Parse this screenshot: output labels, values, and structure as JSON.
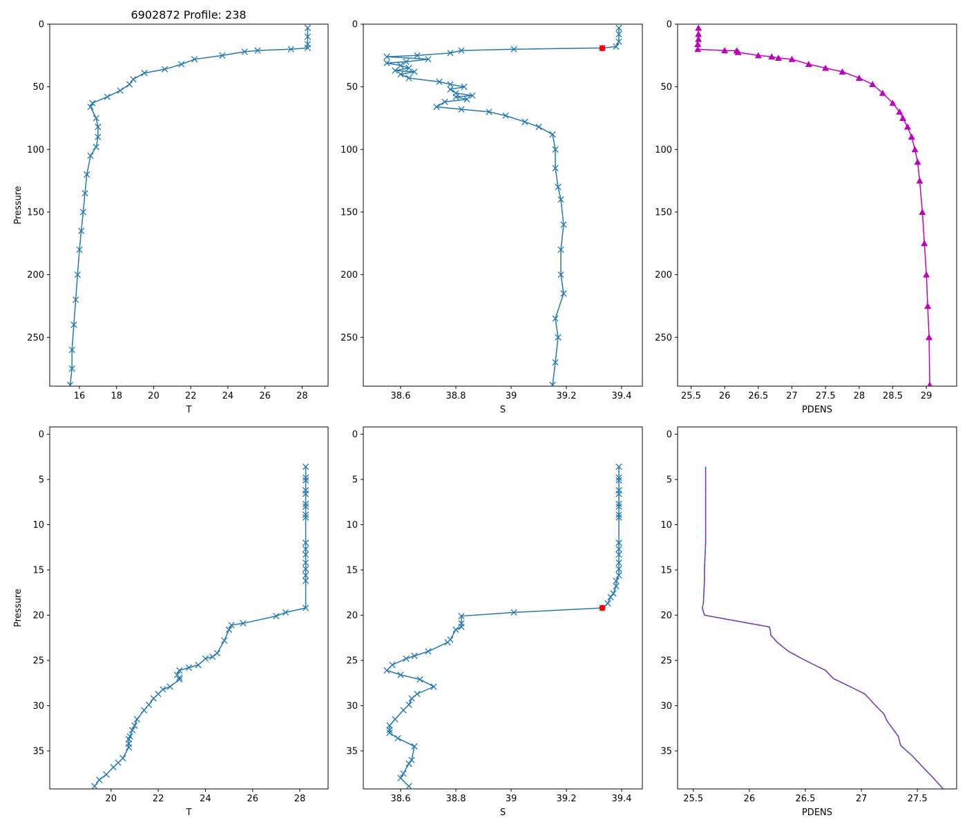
{
  "figure_title": "6902872 Profile: 238",
  "colors": {
    "series": "#1f77b4",
    "pdens": "#bf00bf",
    "pdens_dash": "#1f77b4",
    "highlight": "#ff0000"
  },
  "chart_data": [
    {
      "id": "p1",
      "type": "line",
      "xlabel": "T",
      "ylabel": "Pressure",
      "marker": "x",
      "color": "#1f77b4",
      "xlim": [
        14.4,
        29.4
      ],
      "ylim": [
        289,
        0
      ],
      "xticks": [
        16,
        18,
        20,
        22,
        24,
        26,
        28
      ],
      "yticks": [
        0,
        50,
        100,
        150,
        200,
        250
      ],
      "series": [
        {
          "name": "T",
          "x": [
            28.3,
            28.3,
            28.3,
            28.3,
            27.4,
            25.6,
            24.9,
            23.7,
            22.2,
            21.5,
            20.6,
            19.5,
            18.9,
            18.7,
            18.2,
            17.5,
            16.7,
            16.6,
            16.9,
            17.0,
            17.0,
            16.9,
            16.6,
            16.4,
            16.3,
            16.2,
            16.1,
            16.0,
            15.9,
            15.8,
            15.7,
            15.6,
            15.6,
            15.5
          ],
          "y": [
            3,
            10,
            16,
            19,
            20,
            21,
            22,
            25,
            28,
            32,
            36,
            39,
            44,
            48,
            53,
            58,
            63,
            66,
            75,
            82,
            90,
            98,
            105,
            120,
            135,
            150,
            165,
            180,
            200,
            220,
            240,
            260,
            275,
            288
          ]
        }
      ],
      "annotations": []
    },
    {
      "id": "p2",
      "type": "line",
      "xlabel": "S",
      "ylabel": "",
      "marker": "x",
      "color": "#1f77b4",
      "xlim": [
        38.465,
        39.475
      ],
      "ylim": [
        289,
        0
      ],
      "xticks": [
        38.6,
        38.8,
        39.0,
        39.2,
        39.4
      ],
      "yticks": [
        0,
        50,
        100,
        150,
        200,
        250
      ],
      "series": [
        {
          "name": "S",
          "x": [
            39.39,
            39.39,
            39.39,
            39.38,
            39.33,
            39.01,
            38.82,
            38.78,
            38.66,
            38.55,
            38.7,
            38.62,
            38.55,
            38.6,
            38.63,
            38.58,
            38.65,
            38.6,
            38.63,
            38.74,
            38.78,
            38.83,
            38.78,
            38.8,
            38.86,
            38.8,
            38.84,
            38.76,
            38.73,
            38.82,
            38.92,
            38.98,
            39.05,
            39.1,
            39.15,
            39.16,
            39.16,
            39.17,
            39.18,
            39.19,
            39.18,
            39.18,
            39.19,
            39.16,
            39.17,
            39.16,
            39.15
          ],
          "y": [
            3,
            8,
            14,
            18,
            19,
            20,
            21,
            23,
            25,
            26,
            28,
            30,
            31,
            33,
            35,
            37,
            38,
            40,
            43,
            46,
            48,
            50,
            52,
            55,
            57,
            58,
            60,
            62,
            66,
            68,
            70,
            73,
            78,
            82,
            88,
            100,
            115,
            130,
            140,
            160,
            180,
            200,
            215,
            235,
            250,
            270,
            288
          ]
        }
      ],
      "annotations": [
        {
          "x": 39.33,
          "y": 19.2,
          "label": ""
        }
      ]
    },
    {
      "id": "p3",
      "type": "line",
      "xlabel": "PDENS",
      "ylabel": "",
      "marker": "^",
      "color": "#bf00bf",
      "xlim": [
        25.3,
        29.45
      ],
      "ylim": [
        289,
        0
      ],
      "xticks": [
        25.5,
        26.0,
        26.5,
        27.0,
        27.5,
        28.0,
        28.5,
        29.0
      ],
      "yticks": [
        0,
        50,
        100,
        150,
        200,
        250
      ],
      "series": [
        {
          "name": "PDENS",
          "x": [
            25.61,
            25.61,
            25.61,
            25.6,
            25.6,
            26.0,
            26.18,
            26.2,
            26.5,
            26.7,
            26.8,
            27.0,
            27.25,
            27.5,
            27.75,
            28.0,
            28.2,
            28.35,
            28.5,
            28.6,
            28.65,
            28.72,
            28.78,
            28.83,
            28.87,
            28.9,
            28.94,
            28.97,
            29.0,
            29.02,
            29.04,
            29.05
          ],
          "y": [
            3,
            8,
            12,
            16,
            20,
            21,
            21.2,
            22.5,
            25,
            26,
            27,
            28,
            32,
            35,
            38,
            43,
            48,
            55,
            63,
            70,
            75,
            82,
            90,
            100,
            110,
            125,
            150,
            175,
            200,
            225,
            250,
            288
          ]
        }
      ],
      "annotations": []
    },
    {
      "id": "p4",
      "type": "line",
      "xlabel": "T",
      "ylabel": "Pressure",
      "marker": "x",
      "color": "#1f77b4",
      "xlim": [
        17.4,
        29.2
      ],
      "ylim": [
        39.2,
        -0.8
      ],
      "xticks": [
        20,
        22,
        24,
        26,
        28
      ],
      "yticks": [
        0,
        5,
        10,
        15,
        20,
        25,
        30,
        35
      ],
      "series": [
        {
          "name": "T",
          "x": [
            28.25,
            28.25,
            28.25,
            28.25,
            28.25,
            28.25,
            28.25,
            28.25,
            28.25,
            28.25,
            28.25,
            28.25,
            28.25,
            28.25,
            28.25,
            28.25,
            28.25,
            27.4,
            27.0,
            25.6,
            25.1,
            25.0,
            24.8,
            24.5,
            24.3,
            24.0,
            23.7,
            23.3,
            22.9,
            22.8,
            22.9,
            22.9,
            22.5,
            22.2,
            22.0,
            21.8,
            21.6,
            21.4,
            21.1,
            21.0,
            20.9,
            20.8,
            20.75,
            20.75,
            20.75,
            20.5,
            20.3,
            20.1,
            19.8,
            19.5,
            19.3
          ],
          "y": [
            3.6,
            4.8,
            5.1,
            6.2,
            6.6,
            7.7,
            8.0,
            8.9,
            9.2,
            12.0,
            12.7,
            13.3,
            14.2,
            14.9,
            15.6,
            16.2,
            19.2,
            19.7,
            20.1,
            20.9,
            21.1,
            21.6,
            22.8,
            24.2,
            24.6,
            24.8,
            25.5,
            25.8,
            26.1,
            26.6,
            26.9,
            27.1,
            27.9,
            28.2,
            28.7,
            29.2,
            29.9,
            30.5,
            31.5,
            32.2,
            32.7,
            33.4,
            33.7,
            34.2,
            34.6,
            35.8,
            36.3,
            36.8,
            37.6,
            38.2,
            38.9
          ]
        }
      ],
      "annotations": []
    },
    {
      "id": "p5",
      "type": "line",
      "xlabel": "S",
      "ylabel": "",
      "marker": "x",
      "color": "#1f77b4",
      "xlim": [
        38.465,
        39.475
      ],
      "ylim": [
        39.2,
        -0.8
      ],
      "xticks": [
        38.6,
        38.8,
        39.0,
        39.2,
        39.4
      ],
      "yticks": [
        0,
        5,
        10,
        15,
        20,
        25,
        30,
        35
      ],
      "series": [
        {
          "name": "S",
          "x": [
            39.39,
            39.39,
            39.39,
            39.39,
            39.39,
            39.39,
            39.39,
            39.39,
            39.39,
            39.39,
            39.39,
            39.39,
            39.39,
            39.39,
            39.39,
            39.38,
            39.38,
            39.37,
            39.36,
            39.35,
            39.33,
            39.01,
            38.82,
            38.82,
            38.82,
            38.8,
            38.78,
            38.77,
            38.7,
            38.65,
            38.62,
            38.57,
            38.55,
            38.6,
            38.67,
            38.72,
            38.66,
            38.64,
            38.63,
            38.61,
            38.58,
            38.56,
            38.56,
            38.56,
            38.59,
            38.65,
            38.64,
            38.63,
            38.61,
            38.6,
            38.63
          ],
          "y": [
            3.6,
            4.8,
            5.1,
            6.2,
            6.6,
            7.7,
            8.0,
            8.9,
            9.2,
            12.0,
            12.7,
            13.3,
            14.2,
            14.9,
            15.6,
            16.2,
            16.8,
            17.6,
            18.0,
            18.7,
            19.2,
            19.7,
            20.1,
            20.9,
            21.3,
            21.6,
            22.7,
            23.0,
            24.0,
            24.5,
            24.8,
            25.5,
            26.1,
            26.6,
            27.1,
            27.9,
            28.7,
            29.2,
            29.9,
            30.5,
            31.5,
            32.2,
            32.7,
            33.0,
            33.6,
            34.5,
            36.0,
            36.4,
            37.5,
            38.0,
            38.9
          ]
        }
      ],
      "annotations": [
        {
          "x": 39.33,
          "y": 19.2,
          "label": ""
        }
      ]
    },
    {
      "id": "p6",
      "type": "line",
      "xlabel": "PDENS",
      "ylabel": "",
      "marker": "",
      "color": "#bf00bf",
      "xlim": [
        25.36,
        27.85
      ],
      "ylim": [
        39.2,
        -0.8
      ],
      "xticks": [
        25.5,
        26.0,
        26.5,
        27.0,
        27.5
      ],
      "yticks": [
        0,
        5,
        10,
        15,
        20,
        25,
        30,
        35
      ],
      "series": [
        {
          "name": "PDENS",
          "x": [
            25.61,
            25.61,
            25.61,
            25.6,
            25.6,
            25.59,
            25.58,
            25.6,
            26.0,
            26.18,
            26.19,
            26.19,
            26.25,
            26.35,
            26.47,
            26.58,
            26.68,
            26.75,
            26.9,
            27.03,
            27.12,
            27.2,
            27.23,
            27.33,
            27.35,
            27.45,
            27.55,
            27.65,
            27.73
          ],
          "y": [
            3.6,
            8.0,
            12.0,
            14.9,
            16.2,
            18.7,
            19.2,
            20.0,
            20.9,
            21.3,
            21.9,
            22.2,
            23.0,
            24.0,
            24.8,
            25.5,
            26.1,
            27.0,
            27.9,
            28.7,
            29.9,
            30.9,
            31.7,
            33.4,
            34.4,
            35.5,
            36.8,
            38.1,
            39.2
          ]
        }
      ],
      "annotations": []
    }
  ]
}
